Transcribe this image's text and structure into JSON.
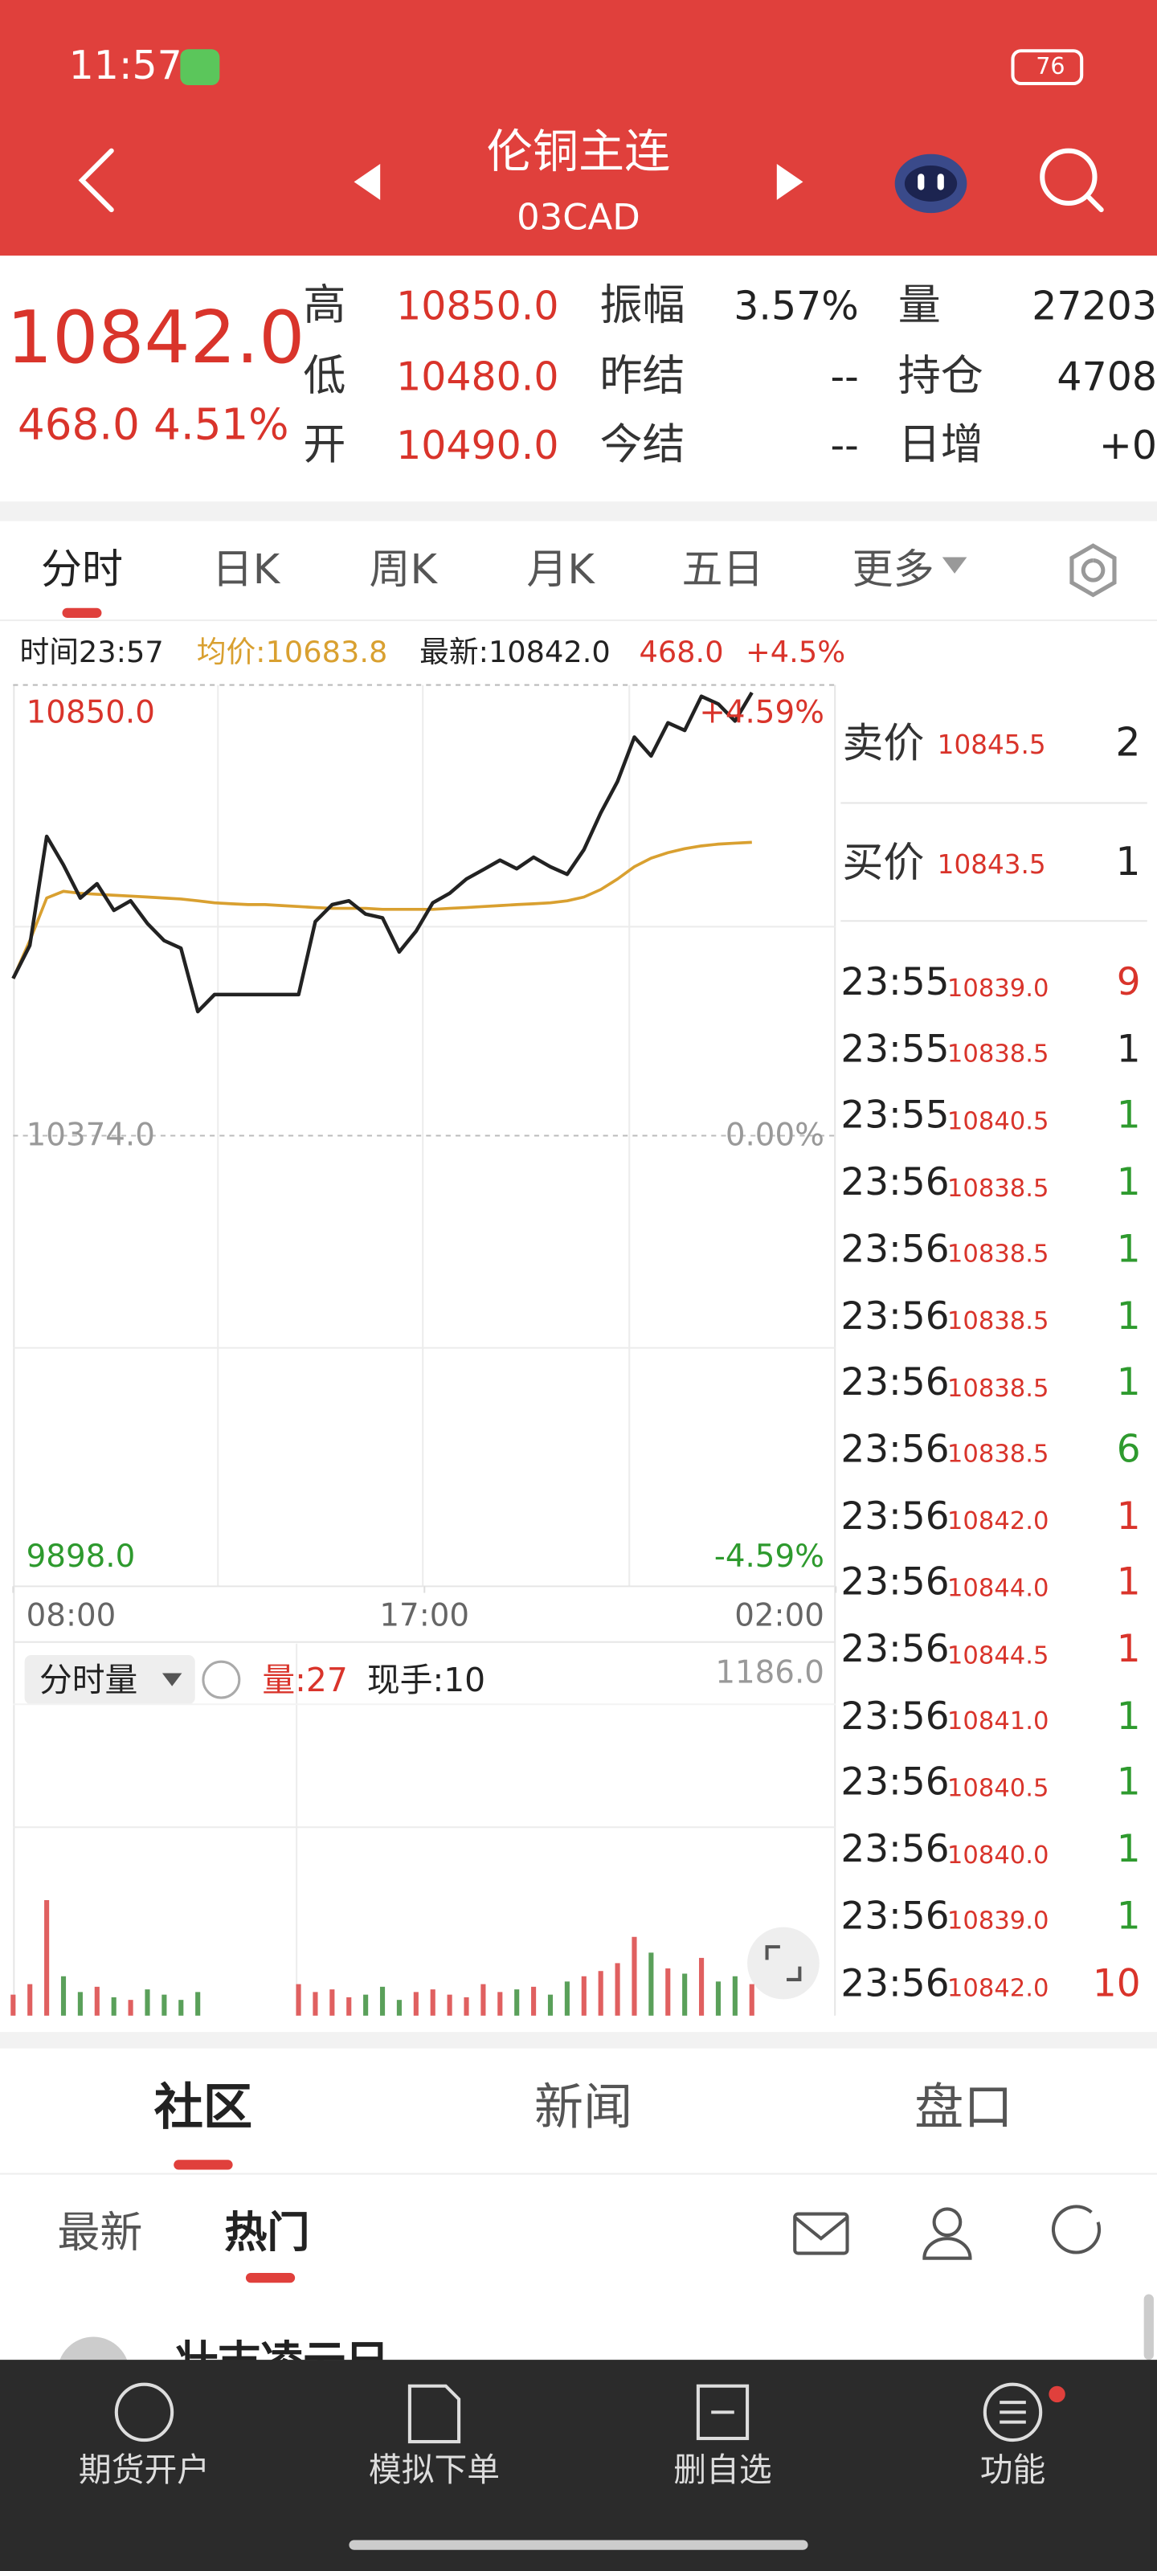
{
  "status_bar": {
    "time": "11:57",
    "battery": "76"
  },
  "header": {
    "title": "伦铜主连",
    "code": "03CAD"
  },
  "quote": {
    "price": "10842.0",
    "change": "468.0",
    "change_pct": "4.51%",
    "fields": [
      [
        {
          "label": "高",
          "value": "10850.0"
        },
        {
          "label": "振幅",
          "value": "3.57%"
        },
        {
          "label": "量",
          "value": "27203"
        }
      ],
      [
        {
          "label": "低",
          "value": "10480.0"
        },
        {
          "label": "昨结",
          "value": "--"
        },
        {
          "label": "持仓",
          "value": "4708"
        }
      ],
      [
        {
          "label": "开",
          "value": "10490.0"
        },
        {
          "label": "今结",
          "value": "--"
        },
        {
          "label": "日增",
          "value": "+0"
        }
      ]
    ]
  },
  "tabs": [
    "分时",
    "日K",
    "周K",
    "月K",
    "五日",
    "更多"
  ],
  "info": {
    "time": "时间23:57",
    "avg": "均价:10683.8",
    "latest": "最新:10842.0",
    "change": "468.0",
    "pct": "+4.5%"
  },
  "chart_data": [
    {
      "type": "line",
      "xlim": [
        0,
        49
      ],
      "xticks": [
        {
          "value": 0,
          "label": "08:00"
        },
        {
          "value": 24.5,
          "label": "17:00"
        },
        {
          "value": 49,
          "label": "02:00"
        }
      ],
      "ylim": [
        9898,
        10850
      ],
      "yticks": [
        {
          "value": 10850,
          "label": "10850.0"
        },
        {
          "value": 10374,
          "label": "10374.0"
        },
        {
          "value": 9898,
          "label": "9898.0"
        }
      ],
      "pct_labels": [
        "+4.59%",
        "0.00%",
        "-4.59%"
      ],
      "series": [
        {
          "color": "#222222",
          "values": [
            10540,
            10575,
            10690,
            10660,
            10625,
            10640,
            10612,
            10622,
            10598,
            10580,
            10572,
            10505,
            10523,
            10523,
            10523,
            10523,
            10523,
            10523,
            10600,
            10618,
            10622,
            10608,
            10604,
            10568,
            10590,
            10620,
            10630,
            10645,
            10655,
            10665,
            10656,
            10668,
            10658,
            10650,
            10676,
            10715,
            10748,
            10795,
            10775,
            10810,
            10802,
            10838,
            10830,
            10812,
            10842,
            null,
            null,
            null,
            null,
            null
          ]
        },
        {
          "color": "#d9a030",
          "values": [
            10540,
            10580,
            10625,
            10632,
            10630,
            10629,
            10628,
            10627,
            10626,
            10625,
            10624,
            10622,
            10620,
            10619,
            10618,
            10618,
            10617,
            10616,
            10615,
            10614,
            10614,
            10614,
            10613,
            10613,
            10613,
            10613,
            10614,
            10615,
            10616,
            10617,
            10618,
            10619,
            10620,
            10622,
            10626,
            10634,
            10645,
            10658,
            10667,
            10673,
            10677,
            10680,
            10682,
            10683,
            10683.8,
            null,
            null,
            null,
            null,
            null
          ]
        }
      ]
    },
    {
      "type": "bar",
      "title": "分时量",
      "qty": "量:27",
      "hand": "现手:10",
      "xlim": [
        0,
        49
      ],
      "ylim": [
        0,
        1186
      ],
      "yticks": [
        {
          "value": 1186,
          "label": "1186.0"
        }
      ],
      "up_color": "#e06060",
      "down_color": "#5aa05a",
      "values": [
        80,
        120,
        440,
        150,
        90,
        110,
        70,
        60,
        100,
        80,
        60,
        90,
        0,
        0,
        0,
        0,
        0,
        120,
        90,
        100,
        70,
        80,
        110,
        60,
        90,
        100,
        80,
        70,
        120,
        90,
        100,
        110,
        80,
        130,
        150,
        170,
        200,
        300,
        240,
        180,
        160,
        220,
        130,
        150,
        120
      ]
    }
  ],
  "order_book": {
    "ask": {
      "label": "卖价",
      "price": "10845.5",
      "vol": "2"
    },
    "bid": {
      "label": "买价",
      "price": "10843.5",
      "vol": "1"
    },
    "trades": [
      {
        "time": "23:55",
        "price": "10839.0",
        "vol": "9",
        "color": "#d9342b"
      },
      {
        "time": "23:55",
        "price": "10838.5",
        "vol": "1",
        "color": "#222222"
      },
      {
        "time": "23:55",
        "price": "10840.5",
        "vol": "1",
        "color": "#2e9a2e"
      },
      {
        "time": "23:56",
        "price": "10838.5",
        "vol": "1",
        "color": "#2e9a2e"
      },
      {
        "time": "23:56",
        "price": "10838.5",
        "vol": "1",
        "color": "#2e9a2e"
      },
      {
        "time": "23:56",
        "price": "10838.5",
        "vol": "1",
        "color": "#2e9a2e"
      },
      {
        "time": "23:56",
        "price": "10838.5",
        "vol": "1",
        "color": "#2e9a2e"
      },
      {
        "time": "23:56",
        "price": "10838.5",
        "vol": "6",
        "color": "#2e9a2e"
      },
      {
        "time": "23:56",
        "price": "10842.0",
        "vol": "1",
        "color": "#d9342b"
      },
      {
        "time": "23:56",
        "price": "10844.0",
        "vol": "1",
        "color": "#d9342b"
      },
      {
        "time": "23:56",
        "price": "10844.5",
        "vol": "1",
        "color": "#d9342b"
      },
      {
        "time": "23:56",
        "price": "10841.0",
        "vol": "1",
        "color": "#2e9a2e"
      },
      {
        "time": "23:56",
        "price": "10840.5",
        "vol": "1",
        "color": "#2e9a2e"
      },
      {
        "time": "23:56",
        "price": "10840.0",
        "vol": "1",
        "color": "#2e9a2e"
      },
      {
        "time": "23:56",
        "price": "10839.0",
        "vol": "1",
        "color": "#2e9a2e"
      },
      {
        "time": "23:56",
        "price": "10842.0",
        "vol": "10",
        "color": "#d9342b"
      }
    ]
  },
  "community": {
    "tabs": [
      "社区",
      "新闻",
      "盘口"
    ],
    "subtabs": [
      "最新",
      "热门"
    ],
    "post_author": "壮志凌云兄"
  },
  "nav": [
    "期货开户",
    "模拟下单",
    "删自选",
    "功能"
  ]
}
